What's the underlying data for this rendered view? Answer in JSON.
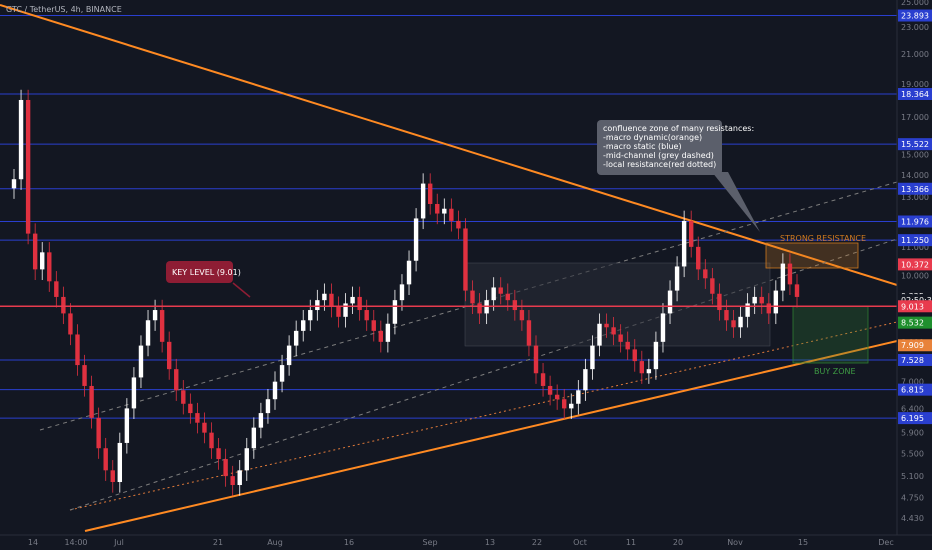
{
  "header": {
    "symbol_line": "GTC / TetherUS, 4h, BINANCE"
  },
  "colors": {
    "background": "#131722",
    "up": "#ffffff",
    "down": "#e03140",
    "orange": "#ff8a22",
    "blue_level": "#2a3fcf",
    "key_level": "#e83b4e",
    "grey_dashed": "#7d7d7d",
    "red_dotted": "#e07a3a",
    "resistance_zone": "#d07a1f",
    "buy_zone": "#2e7d32",
    "note_box": "#5b5f6b"
  },
  "chart_data": {
    "type": "candlestick",
    "ylim": [
      4.3,
      25.0
    ],
    "yscale": "log",
    "y_ticks": [
      "25.000",
      "23.000",
      "21.000",
      "19.000",
      "17.000",
      "15.000",
      "14.000",
      "13.000",
      "12.000",
      "11.000",
      "10.000",
      "9.000",
      "8.000",
      "7.000",
      "6.400",
      "5.900",
      "5.500",
      "5.100",
      "4.750",
      "4.430"
    ],
    "x_ticks": [
      "14",
      "14:00",
      "Jul",
      "21",
      "Aug",
      "16",
      "Sep",
      "13",
      "22",
      "Oct",
      "11",
      "20",
      "Nov",
      "15",
      "Dec"
    ],
    "price_badges": [
      {
        "label": "23.893",
        "value": 23.893,
        "color": "#2a3fcf"
      },
      {
        "label": "18.364",
        "value": 18.364,
        "color": "#2a3fcf"
      },
      {
        "label": "15.522",
        "value": 15.522,
        "color": "#2a3fcf"
      },
      {
        "label": "13.366",
        "value": 13.366,
        "color": "#2a3fcf"
      },
      {
        "label": "11.976",
        "value": 11.976,
        "color": "#2a3fcf"
      },
      {
        "label": "11.250",
        "value": 11.25,
        "color": "#2a3fcf"
      },
      {
        "label": "10.372",
        "value": 10.372,
        "color": "#e83b4e"
      },
      {
        "label": "9.325",
        "value": 9.325,
        "color": "#131722"
      },
      {
        "label": "02:50:38",
        "value": 9.2,
        "color": "#131722"
      },
      {
        "label": "9.013",
        "value": 9.013,
        "color": "#e83b4e"
      },
      {
        "label": "8.532",
        "value": 8.532,
        "color": "#1f8f2e"
      },
      {
        "label": "7.909",
        "value": 7.909,
        "color": "#e8823a"
      },
      {
        "label": "7.528",
        "value": 7.528,
        "color": "#2a3fcf"
      },
      {
        "label": "6.815",
        "value": 6.815,
        "color": "#2a3fcf"
      },
      {
        "label": "6.195",
        "value": 6.195,
        "color": "#2a3fcf"
      }
    ],
    "blue_levels": [
      23.893,
      18.364,
      15.522,
      13.366,
      11.976,
      11.25,
      7.528,
      6.815,
      6.195
    ],
    "key_level": {
      "value": 9.013,
      "label": "KEY LEVEL (9.01)"
    },
    "annotation": {
      "lines": [
        "confluence zone of many resistances:",
        "-macro dynamic(orange)",
        "-macro static (blue)",
        "-mid-channel (grey dashed)",
        "-local resistance(red dotted)"
      ]
    },
    "zones": [
      {
        "label": "STRONG RESISTANCE",
        "top": 11.25,
        "bottom": 10.15,
        "color": "#d07a1f"
      },
      {
        "label": "BUY ZONE",
        "top": 9.1,
        "bottom": 7.5,
        "color": "#2e7d32"
      }
    ],
    "closes": [
      13.8,
      18.0,
      11.5,
      10.2,
      10.8,
      9.8,
      9.3,
      8.8,
      8.2,
      7.4,
      6.9,
      6.2,
      5.6,
      5.2,
      5.0,
      5.7,
      6.4,
      7.1,
      7.9,
      8.6,
      8.9,
      8.0,
      7.3,
      6.8,
      6.5,
      6.3,
      6.1,
      5.9,
      5.6,
      5.4,
      5.1,
      4.95,
      5.2,
      5.6,
      6.0,
      6.3,
      6.6,
      7.0,
      7.4,
      7.9,
      8.3,
      8.6,
      8.9,
      9.2,
      9.4,
      9.0,
      8.7,
      9.1,
      9.3,
      8.9,
      8.6,
      8.3,
      8.0,
      8.5,
      9.2,
      9.7,
      10.5,
      12.1,
      13.6,
      12.7,
      12.3,
      12.5,
      12.0,
      11.7,
      9.5,
      9.1,
      8.8,
      9.2,
      9.6,
      9.4,
      9.2,
      8.9,
      8.6,
      7.9,
      7.2,
      6.9,
      6.7,
      6.6,
      6.4,
      6.5,
      6.8,
      7.3,
      7.9,
      8.5,
      8.4,
      8.2,
      8.0,
      7.8,
      7.5,
      7.2,
      7.3,
      8.0,
      8.8,
      9.5,
      10.3,
      12.0,
      11.0,
      10.2,
      9.9,
      9.4,
      8.9,
      8.6,
      8.4,
      8.7,
      9.1,
      9.3,
      9.1,
      8.8,
      9.5,
      10.4,
      9.7,
      9.3
    ]
  }
}
